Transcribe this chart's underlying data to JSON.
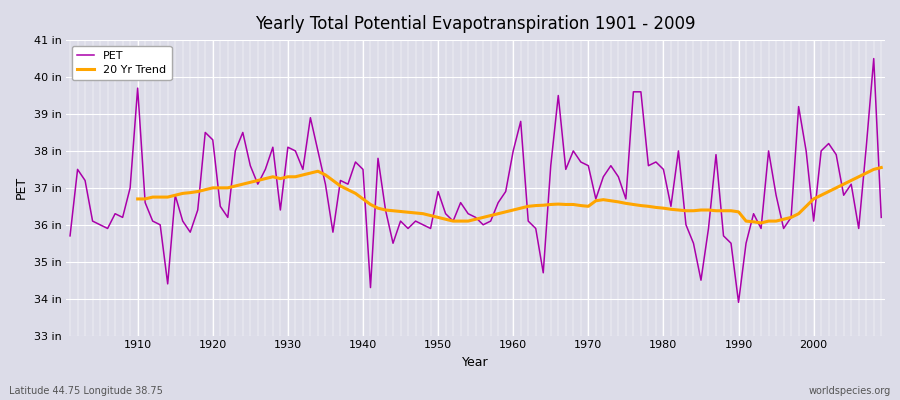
{
  "title": "Yearly Total Potential Evapotranspiration 1901 - 2009",
  "ylabel": "PET",
  "xlabel": "Year",
  "pet_color": "#AA00AA",
  "trend_color": "#FFA500",
  "bg_color": "#DCDCE8",
  "plot_bg_color": "#DCDCE8",
  "ylim": [
    33,
    41
  ],
  "ytick_labels": [
    "33 in",
    "34 in",
    "35 in",
    "36 in",
    "37 in",
    "38 in",
    "39 in",
    "40 in",
    "41 in"
  ],
  "ytick_values": [
    33,
    34,
    35,
    36,
    37,
    38,
    39,
    40,
    41
  ],
  "footnote_left": "Latitude 44.75 Longitude 38.75",
  "footnote_right": "worldspecies.org",
  "years": [
    1901,
    1902,
    1903,
    1904,
    1905,
    1906,
    1907,
    1908,
    1909,
    1910,
    1911,
    1912,
    1913,
    1914,
    1915,
    1916,
    1917,
    1918,
    1919,
    1920,
    1921,
    1922,
    1923,
    1924,
    1925,
    1926,
    1927,
    1928,
    1929,
    1930,
    1931,
    1932,
    1933,
    1934,
    1935,
    1936,
    1937,
    1938,
    1939,
    1940,
    1941,
    1942,
    1943,
    1944,
    1945,
    1946,
    1947,
    1948,
    1949,
    1950,
    1951,
    1952,
    1953,
    1954,
    1955,
    1956,
    1957,
    1958,
    1959,
    1960,
    1961,
    1962,
    1963,
    1964,
    1965,
    1966,
    1967,
    1968,
    1969,
    1970,
    1971,
    1972,
    1973,
    1974,
    1975,
    1976,
    1977,
    1978,
    1979,
    1980,
    1981,
    1982,
    1983,
    1984,
    1985,
    1986,
    1987,
    1988,
    1989,
    1990,
    1991,
    1992,
    1993,
    1994,
    1995,
    1996,
    1997,
    1998,
    1999,
    2000,
    2001,
    2002,
    2003,
    2004,
    2005,
    2006,
    2007,
    2008,
    2009
  ],
  "pet_values": [
    35.7,
    37.5,
    37.2,
    36.1,
    36.0,
    35.9,
    36.3,
    36.2,
    37.0,
    39.7,
    36.6,
    36.1,
    36.0,
    34.4,
    36.8,
    36.1,
    35.8,
    36.4,
    38.5,
    38.3,
    36.5,
    36.2,
    38.0,
    38.5,
    37.6,
    37.1,
    37.5,
    38.1,
    36.4,
    38.1,
    38.0,
    37.5,
    38.9,
    38.0,
    37.1,
    35.8,
    37.2,
    37.1,
    37.7,
    37.5,
    34.3,
    37.8,
    36.4,
    35.5,
    36.1,
    35.9,
    36.1,
    36.0,
    35.9,
    36.9,
    36.3,
    36.1,
    36.6,
    36.3,
    36.2,
    36.0,
    36.1,
    36.6,
    36.9,
    38.0,
    38.8,
    36.1,
    35.9,
    34.7,
    37.6,
    39.5,
    37.5,
    38.0,
    37.7,
    37.6,
    36.7,
    37.3,
    37.6,
    37.3,
    36.7,
    39.6,
    39.6,
    37.6,
    37.7,
    37.5,
    36.5,
    38.0,
    36.0,
    35.5,
    34.5,
    35.9,
    37.9,
    35.7,
    35.5,
    33.9,
    35.5,
    36.3,
    35.9,
    38.0,
    36.8,
    35.9,
    36.2,
    39.2,
    38.0,
    36.1,
    38.0,
    38.2,
    37.9,
    36.8,
    37.1,
    35.9,
    38.1,
    40.5,
    36.2
  ],
  "trend_values": [
    null,
    null,
    null,
    null,
    null,
    null,
    null,
    null,
    null,
    36.7,
    36.7,
    36.75,
    36.75,
    36.75,
    36.8,
    36.85,
    36.87,
    36.9,
    36.95,
    37.0,
    37.0,
    37.0,
    37.05,
    37.1,
    37.15,
    37.2,
    37.25,
    37.3,
    37.25,
    37.3,
    37.3,
    37.35,
    37.4,
    37.45,
    37.35,
    37.2,
    37.05,
    36.95,
    36.85,
    36.7,
    36.55,
    36.45,
    36.4,
    36.38,
    36.36,
    36.34,
    36.32,
    36.3,
    36.25,
    36.2,
    36.15,
    36.1,
    36.1,
    36.1,
    36.15,
    36.2,
    36.25,
    36.3,
    36.35,
    36.4,
    36.45,
    36.5,
    36.52,
    36.53,
    36.55,
    36.56,
    36.55,
    36.55,
    36.52,
    36.5,
    36.65,
    36.68,
    36.65,
    36.62,
    36.58,
    36.55,
    36.52,
    36.5,
    36.47,
    36.45,
    36.42,
    36.4,
    36.38,
    36.38,
    36.4,
    36.4,
    36.38,
    36.38,
    36.38,
    36.35,
    36.1,
    36.08,
    36.05,
    36.1,
    36.1,
    36.15,
    36.2,
    36.3,
    36.5,
    36.7,
    36.8,
    36.9,
    37.0,
    37.1,
    37.2,
    37.3,
    37.4,
    37.5,
    37.55
  ]
}
